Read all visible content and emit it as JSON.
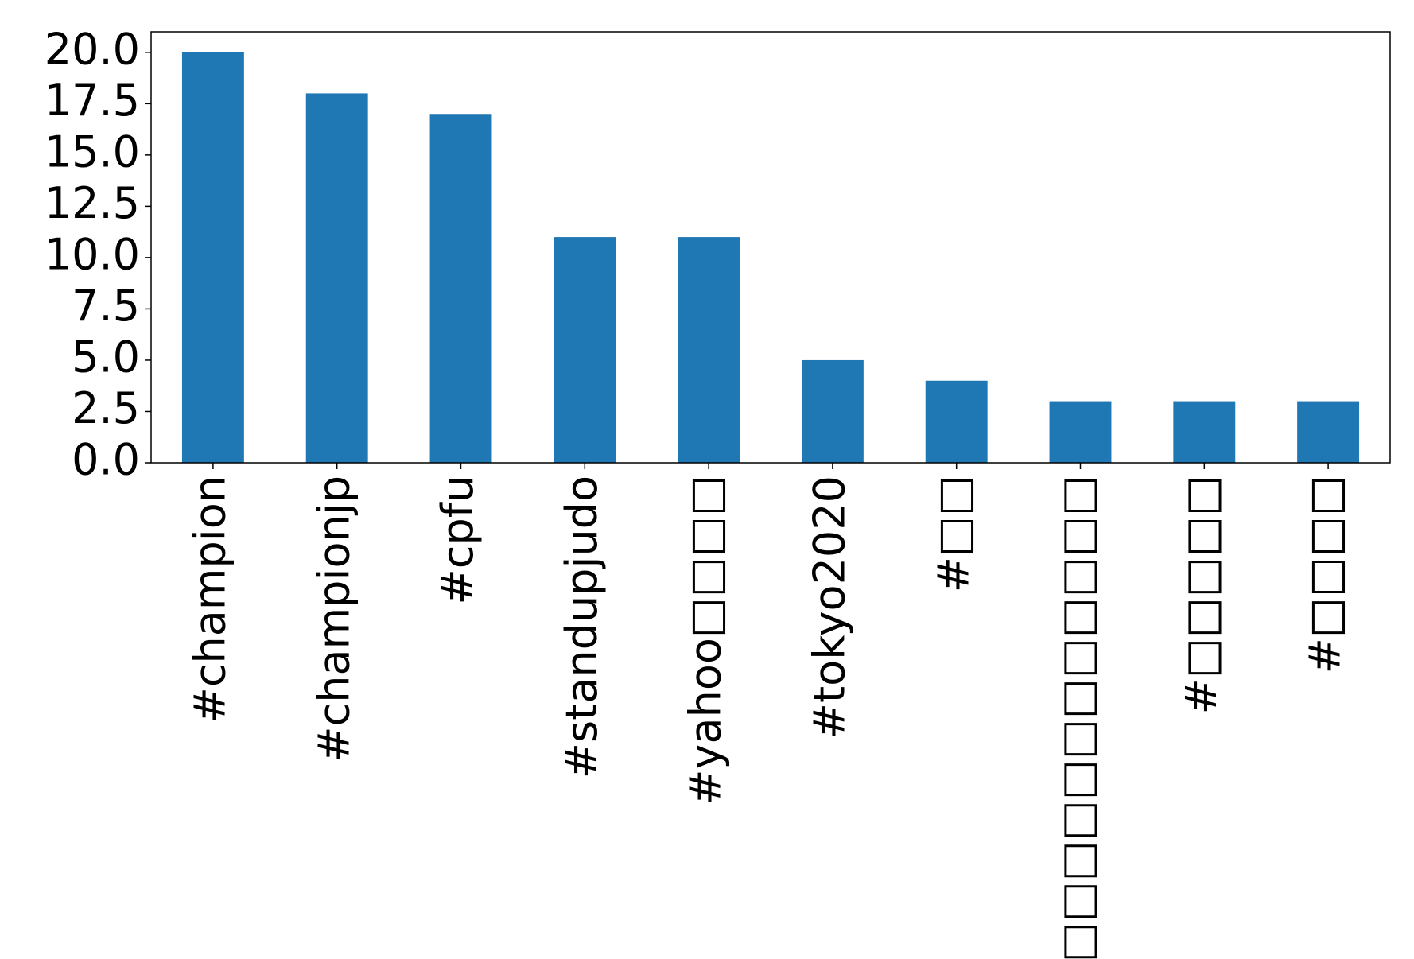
{
  "chart_data": {
    "type": "bar",
    "categories": [
      "#champion",
      "#championjp",
      "#cpfu",
      "#standupjudo",
      "#yahoo□□□□",
      "#tokyo2020",
      "#□□",
      "#□□□□□□□□□□□□",
      "#□□□□□",
      "#□□□□"
    ],
    "values": [
      20,
      18,
      17,
      11,
      11,
      5,
      4,
      3,
      3,
      3
    ],
    "color": "#1f77b4",
    "ylim": [
      0,
      21
    ],
    "yticks": [
      {
        "value": 0,
        "label": "0.0"
      },
      {
        "value": 2.5,
        "label": "2.5"
      },
      {
        "value": 5,
        "label": "5.0"
      },
      {
        "value": 7.5,
        "label": "7.5"
      },
      {
        "value": 10,
        "label": "10.0"
      },
      {
        "value": 12.5,
        "label": "12.5"
      },
      {
        "value": 15,
        "label": "15.0"
      },
      {
        "value": 17.5,
        "label": "17.5"
      },
      {
        "value": 20,
        "label": "20.0"
      }
    ],
    "grid": false
  }
}
